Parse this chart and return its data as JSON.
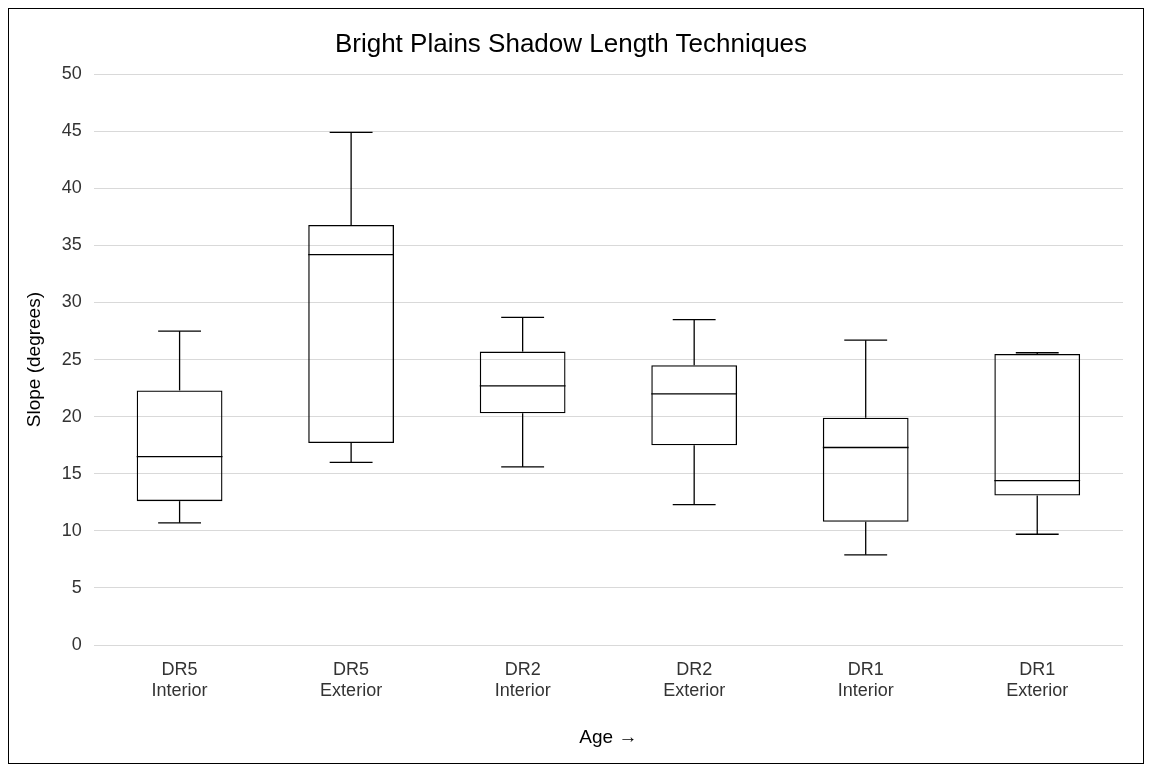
{
  "chart_data": {
    "type": "box",
    "title": "Bright Plains Shadow Length Techniques",
    "xlabel": "Age →",
    "ylabel": "Slope (degrees)",
    "categories": [
      "DR5\nInterior",
      "DR5\nExterior",
      "DR2\nInterior",
      "DR2\nExterior",
      "DR1\nInterior",
      "DR1\nExterior"
    ],
    "boxes": [
      {
        "low": 10.7,
        "q1": 12.6,
        "median": 16.5,
        "q3": 22.3,
        "high": 27.5
      },
      {
        "low": 16.0,
        "q1": 17.7,
        "median": 34.2,
        "q3": 36.8,
        "high": 44.9
      },
      {
        "low": 15.6,
        "q1": 20.3,
        "median": 22.7,
        "q3": 25.7,
        "high": 28.7
      },
      {
        "low": 12.3,
        "q1": 17.5,
        "median": 22.0,
        "q3": 24.5,
        "high": 28.5
      },
      {
        "low": 7.9,
        "q1": 10.8,
        "median": 17.3,
        "q3": 19.9,
        "high": 26.7
      },
      {
        "low": 9.7,
        "q1": 13.1,
        "median": 14.4,
        "q3": 25.5,
        "high": 25.6
      }
    ],
    "color": "#000000",
    "ylim": [
      0,
      50
    ],
    "yticks": [
      0,
      5,
      10,
      15,
      20,
      25,
      30,
      35,
      40,
      45,
      50
    ],
    "grid": "y",
    "legend": false
  }
}
